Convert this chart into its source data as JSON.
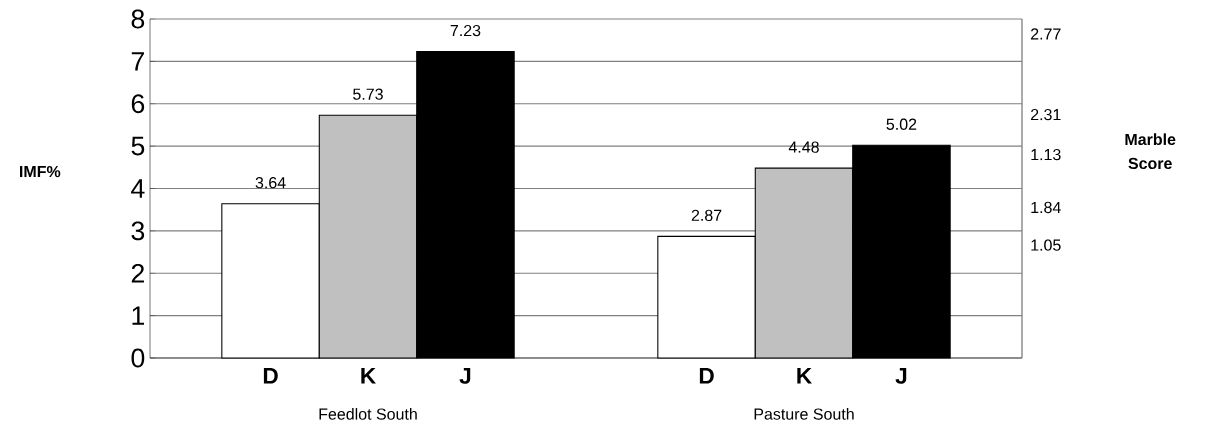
{
  "chart_data": {
    "type": "bar",
    "categories": [
      "Feedlot South",
      "Pasture South"
    ],
    "series": [
      {
        "name": "D",
        "color": "#ffffff",
        "values": [
          3.64,
          2.87
        ]
      },
      {
        "name": "K",
        "color": "#c0c0c0",
        "values": [
          5.73,
          4.48
        ]
      },
      {
        "name": "J",
        "color": "#000000",
        "values": [
          7.23,
          5.02
        ]
      }
    ],
    "ylabel": "IMF%",
    "ylim": [
      0,
      8
    ],
    "yticks": [
      0,
      1,
      2,
      3,
      4,
      5,
      6,
      7,
      8
    ],
    "annotations": [
      "2.77",
      "2.31",
      "1.13",
      "1.84",
      "1.05",
      "Marble Score"
    ],
    "grid": "y",
    "data_labels": true
  }
}
